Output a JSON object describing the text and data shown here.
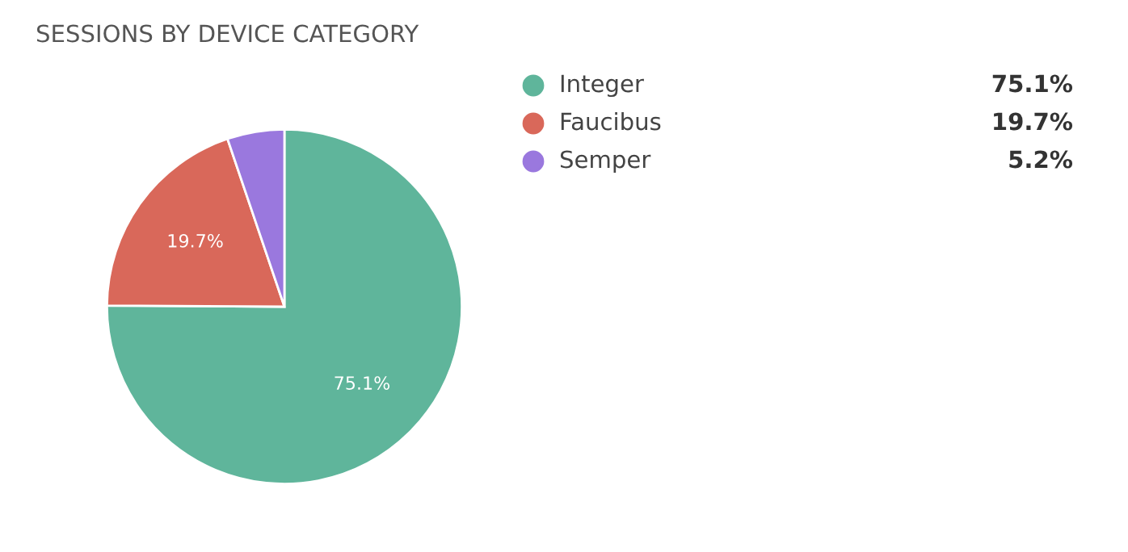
{
  "chart_data": {
    "type": "pie",
    "title": "SESSIONS BY DEVICE CATEGORY",
    "categories": [
      "Integer",
      "Faucibus",
      "Semper"
    ],
    "values": [
      75.1,
      19.7,
      5.2
    ],
    "colors": [
      "#5fb59b",
      "#d9685a",
      "#9a78de"
    ],
    "value_labels": [
      "75.1%",
      "19.7%",
      "5.2%"
    ],
    "annotations": [
      {
        "text": "75.1%",
        "x": "Integer"
      },
      {
        "text": "19.7%",
        "x": "Faucibus"
      }
    ],
    "legend": "right"
  }
}
